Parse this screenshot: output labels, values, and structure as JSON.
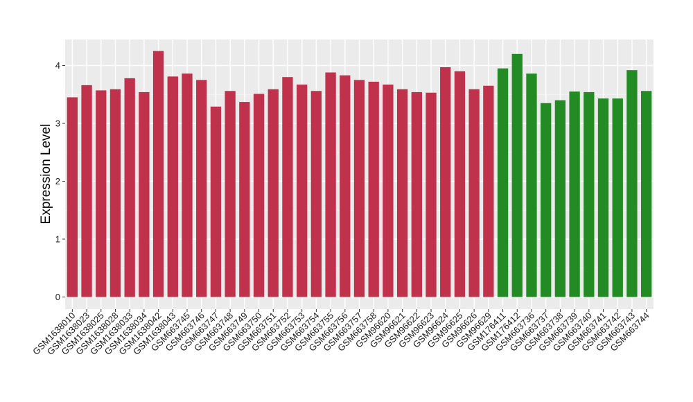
{
  "chart_data": {
    "type": "bar",
    "title": "",
    "xlabel": "",
    "ylabel": "Expression Level",
    "ylim": [
      0,
      4.4
    ],
    "yticks": [
      0,
      1,
      2,
      3,
      4
    ],
    "grid": true,
    "panel_background": "#ebebeb",
    "categories": [
      "GSM1638010",
      "GSM1638023",
      "GSM1638025",
      "GSM1638028",
      "GSM1638033",
      "GSM1638034",
      "GSM1638042",
      "GSM1638043",
      "GSM663745",
      "GSM663746",
      "GSM663747",
      "GSM663748",
      "GSM663749",
      "GSM663750",
      "GSM663751",
      "GSM663752",
      "GSM663753",
      "GSM663754",
      "GSM663755",
      "GSM663756",
      "GSM663757",
      "GSM663758",
      "GSM96620",
      "GSM96621",
      "GSM96622",
      "GSM96623",
      "GSM96624",
      "GSM96625",
      "GSM96626",
      "GSM96629",
      "GSM176411",
      "GSM176412",
      "GSM663736",
      "GSM663737",
      "GSM663738",
      "GSM663739",
      "GSM663740",
      "GSM663741",
      "GSM663742",
      "GSM663743",
      "GSM663744"
    ],
    "values": [
      3.45,
      3.66,
      3.57,
      3.59,
      3.78,
      3.54,
      4.25,
      3.81,
      3.86,
      3.75,
      3.29,
      3.56,
      3.37,
      3.51,
      3.59,
      3.8,
      3.67,
      3.56,
      3.88,
      3.83,
      3.75,
      3.72,
      3.67,
      3.59,
      3.54,
      3.53,
      3.97,
      3.9,
      3.59,
      3.65,
      3.95,
      4.2,
      3.86,
      3.35,
      3.4,
      3.55,
      3.54,
      3.43,
      3.43,
      3.92,
      3.56
    ],
    "group_sizes": [
      30,
      11
    ],
    "colors": [
      "#c0314b",
      "#238b23"
    ]
  }
}
